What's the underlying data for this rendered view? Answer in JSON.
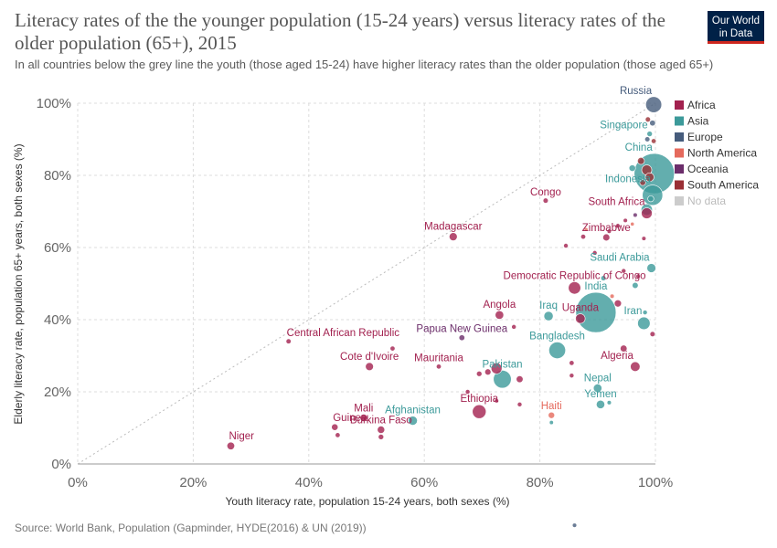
{
  "header": {
    "title": "Literacy rates of the the younger population (15-24 years) versus literacy rates of the older population (65+), 2015",
    "subtitle": "In all countries below the grey line the youth (those aged 15-24) have higher literacy rates than the older population (those aged 65+)",
    "logo_line1": "Our World",
    "logo_line2": "in Data"
  },
  "footer": {
    "source": "Source: World Bank, Population (Gapminder, HYDE(2016) & UN (2019))"
  },
  "colors": {
    "Africa": "#a2214f",
    "Asia": "#3c9a9a",
    "Europe": "#465c7c",
    "North America": "#e56a5d",
    "Oceania": "#6b2d6a",
    "South America": "#9a2f35",
    "No data": "#cccccc"
  },
  "chart_data": {
    "type": "scatter",
    "title": "Literacy rates of the the younger population (15-24 years) versus literacy rates of the older population (65+), 2015",
    "xlabel": "Youth literacy rate, population 15-24 years, both sexes (%)",
    "ylabel": "Elderly literacy rate, population 65+ years, both sexes (%)",
    "xlim": [
      0,
      100
    ],
    "ylim": [
      0,
      100
    ],
    "x_ticks": [
      "0%",
      "20%",
      "40%",
      "60%",
      "80%",
      "100%"
    ],
    "y_ticks": [
      "0%",
      "20%",
      "40%",
      "60%",
      "80%",
      "100%"
    ],
    "grid": true,
    "reference_line": "y = x (dotted grey)",
    "legend": {
      "position": "top-right",
      "entries": [
        "Africa",
        "Asia",
        "Europe",
        "North America",
        "Oceania",
        "South America",
        "No data"
      ]
    },
    "labeled_points": [
      {
        "label": "Russia",
        "x": 99.7,
        "y": 99.6,
        "group": "Europe",
        "pop": 145
      },
      {
        "label": "Singapore",
        "x": 99.0,
        "y": 91.5,
        "group": "Asia",
        "pop": 6
      },
      {
        "label": "China",
        "x": 99.8,
        "y": 80.5,
        "group": "Asia",
        "pop": 1400
      },
      {
        "label": "Indonesia",
        "x": 99.5,
        "y": 74.5,
        "group": "Asia",
        "pop": 258
      },
      {
        "label": "Congo",
        "x": 81.0,
        "y": 73.0,
        "group": "Africa",
        "pop": 5
      },
      {
        "label": "South Africa",
        "x": 98.5,
        "y": 69.5,
        "group": "Africa",
        "pop": 55
      },
      {
        "label": "Zimbabwe",
        "x": 91.5,
        "y": 62.8,
        "group": "Africa",
        "pop": 15
      },
      {
        "label": "Madagascar",
        "x": 65.0,
        "y": 63.0,
        "group": "Africa",
        "pop": 24
      },
      {
        "label": "Saudi Arabia",
        "x": 99.3,
        "y": 54.3,
        "group": "Asia",
        "pop": 32
      },
      {
        "label": "Democratic Republic of Congo",
        "x": 86.0,
        "y": 48.8,
        "group": "Africa",
        "pop": 77
      },
      {
        "label": "India",
        "x": 89.7,
        "y": 42.0,
        "group": "Asia",
        "pop": 1310
      },
      {
        "label": "Uganda",
        "x": 87.0,
        "y": 40.3,
        "group": "Africa",
        "pop": 40
      },
      {
        "label": "Iraq",
        "x": 81.5,
        "y": 41.0,
        "group": "Asia",
        "pop": 36
      },
      {
        "label": "Iran",
        "x": 98.0,
        "y": 39.0,
        "group": "Asia",
        "pop": 79
      },
      {
        "label": "Angola",
        "x": 73.0,
        "y": 41.3,
        "group": "Africa",
        "pop": 28
      },
      {
        "label": "Papua New Guinea",
        "x": 66.5,
        "y": 35.0,
        "group": "Oceania",
        "pop": 8
      },
      {
        "label": "Central African Republic",
        "x": 36.5,
        "y": 34.0,
        "group": "Africa",
        "pop": 4.5
      },
      {
        "label": "Bangladesh",
        "x": 83.0,
        "y": 31.5,
        "group": "Asia",
        "pop": 161
      },
      {
        "label": "Cote d'Ivoire",
        "x": 50.5,
        "y": 27.0,
        "group": "Africa",
        "pop": 23
      },
      {
        "label": "Mauritania",
        "x": 62.5,
        "y": 27.0,
        "group": "Africa",
        "pop": 4
      },
      {
        "label": "Pakistan",
        "x": 73.5,
        "y": 23.5,
        "group": "Asia",
        "pop": 190
      },
      {
        "label": "Algeria",
        "x": 96.5,
        "y": 27.0,
        "group": "Africa",
        "pop": 40
      },
      {
        "label": "Nepal",
        "x": 90.0,
        "y": 21.0,
        "group": "Asia",
        "pop": 28
      },
      {
        "label": "Yemen",
        "x": 90.5,
        "y": 16.5,
        "group": "Asia",
        "pop": 27
      },
      {
        "label": "Ethiopia",
        "x": 69.5,
        "y": 14.5,
        "group": "Africa",
        "pop": 100
      },
      {
        "label": "Haiti",
        "x": 82.0,
        "y": 13.5,
        "group": "North America",
        "pop": 11
      },
      {
        "label": "Afghanistan",
        "x": 58.0,
        "y": 12.0,
        "group": "Asia",
        "pop": 34
      },
      {
        "label": "Mali",
        "x": 49.5,
        "y": 12.8,
        "group": "Africa",
        "pop": 18
      },
      {
        "label": "Guinea",
        "x": 44.5,
        "y": 10.2,
        "group": "Africa",
        "pop": 12
      },
      {
        "label": "Burkina Faso",
        "x": 52.5,
        "y": 9.5,
        "group": "Africa",
        "pop": 18
      },
      {
        "label": "Niger",
        "x": 26.5,
        "y": 5.0,
        "group": "Africa",
        "pop": 20
      }
    ],
    "unlabeled_points": [
      {
        "x": 98.7,
        "y": 95.5,
        "group": "South America",
        "pop": 5
      },
      {
        "x": 99.5,
        "y": 94.5,
        "group": "Europe",
        "pop": 8
      },
      {
        "x": 98.6,
        "y": 90.0,
        "group": "Europe",
        "pop": 5
      },
      {
        "x": 99.7,
        "y": 89.5,
        "group": "South America",
        "pop": 4
      },
      {
        "x": 97.5,
        "y": 84.0,
        "group": "South America",
        "pop": 15
      },
      {
        "x": 96.0,
        "y": 82.0,
        "group": "Asia",
        "pop": 12
      },
      {
        "x": 98.5,
        "y": 81.5,
        "group": "South America",
        "pop": 45
      },
      {
        "x": 99.0,
        "y": 79.5,
        "group": "South America",
        "pop": 30
      },
      {
        "x": 97.8,
        "y": 78.0,
        "group": "South America",
        "pop": 8
      },
      {
        "x": 99.2,
        "y": 73.5,
        "group": "Asia",
        "pop": 9
      },
      {
        "x": 98.5,
        "y": 70.5,
        "group": "Asia",
        "pop": 60
      },
      {
        "x": 96.5,
        "y": 69.0,
        "group": "Oceania",
        "pop": 2
      },
      {
        "x": 94.8,
        "y": 67.5,
        "group": "Africa",
        "pop": 2
      },
      {
        "x": 96.0,
        "y": 66.5,
        "group": "North America",
        "pop": 1
      },
      {
        "x": 93.5,
        "y": 66.0,
        "group": "Africa",
        "pop": 3
      },
      {
        "x": 92.0,
        "y": 64.5,
        "group": "Africa",
        "pop": 2
      },
      {
        "x": 88.0,
        "y": 65.0,
        "group": "North America",
        "pop": 1
      },
      {
        "x": 87.5,
        "y": 63.0,
        "group": "Africa",
        "pop": 4
      },
      {
        "x": 98.0,
        "y": 62.5,
        "group": "Africa",
        "pop": 2
      },
      {
        "x": 84.5,
        "y": 60.5,
        "group": "Africa",
        "pop": 3
      },
      {
        "x": 89.5,
        "y": 58.5,
        "group": "Africa",
        "pop": 3
      },
      {
        "x": 91.0,
        "y": 51.5,
        "group": "Asia",
        "pop": 5
      },
      {
        "x": 94.5,
        "y": 53.5,
        "group": "Africa",
        "pop": 3
      },
      {
        "x": 96.5,
        "y": 49.5,
        "group": "Asia",
        "pop": 9
      },
      {
        "x": 97.0,
        "y": 52.0,
        "group": "Africa",
        "pop": 2
      },
      {
        "x": 92.5,
        "y": 46.5,
        "group": "North America",
        "pop": 2
      },
      {
        "x": 93.5,
        "y": 44.5,
        "group": "Africa",
        "pop": 16
      },
      {
        "x": 98.2,
        "y": 42.0,
        "group": "Asia",
        "pop": 3
      },
      {
        "x": 99.5,
        "y": 36.0,
        "group": "Africa",
        "pop": 5
      },
      {
        "x": 75.5,
        "y": 38.0,
        "group": "Africa",
        "pop": 3
      },
      {
        "x": 54.5,
        "y": 32.0,
        "group": "Africa",
        "pop": 4
      },
      {
        "x": 94.5,
        "y": 32.0,
        "group": "Africa",
        "pop": 14
      },
      {
        "x": 85.5,
        "y": 28.0,
        "group": "Africa",
        "pop": 4
      },
      {
        "x": 72.5,
        "y": 26.5,
        "group": "Africa",
        "pop": 55
      },
      {
        "x": 71.0,
        "y": 25.5,
        "group": "Africa",
        "pop": 10
      },
      {
        "x": 69.5,
        "y": 25.0,
        "group": "Africa",
        "pop": 6
      },
      {
        "x": 76.5,
        "y": 23.5,
        "group": "Africa",
        "pop": 14
      },
      {
        "x": 85.5,
        "y": 24.5,
        "group": "Africa",
        "pop": 3
      },
      {
        "x": 67.5,
        "y": 20.0,
        "group": "Africa",
        "pop": 3
      },
      {
        "x": 72.5,
        "y": 17.5,
        "group": "Africa",
        "pop": 2
      },
      {
        "x": 76.5,
        "y": 16.5,
        "group": "Africa",
        "pop": 3
      },
      {
        "x": 92.0,
        "y": 17.0,
        "group": "Asia",
        "pop": 2
      },
      {
        "x": 82.0,
        "y": 11.5,
        "group": "Asia",
        "pop": 1.5
      },
      {
        "x": 52.5,
        "y": 7.5,
        "group": "Africa",
        "pop": 6
      },
      {
        "x": 45.0,
        "y": 8.0,
        "group": "Africa",
        "pop": 4
      },
      {
        "x": 86.0,
        "y": -17.0,
        "group": "Europe",
        "pop": 2
      }
    ]
  }
}
